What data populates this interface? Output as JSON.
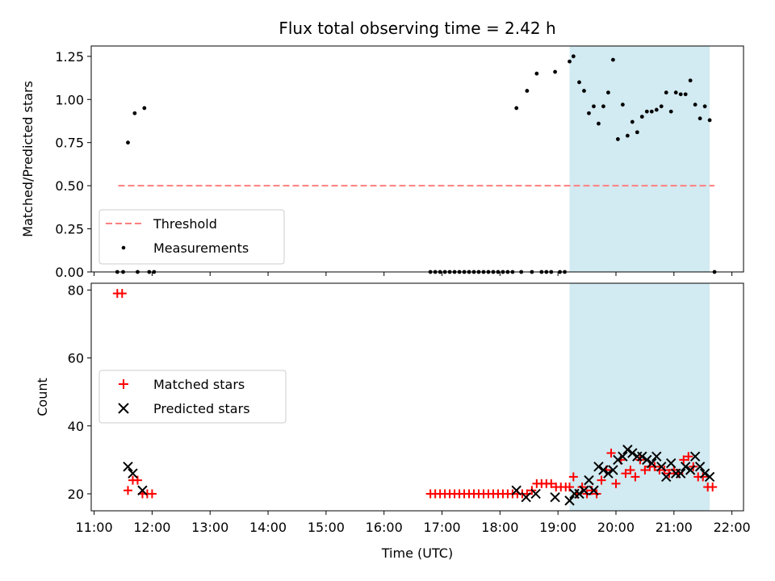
{
  "chart_data": [
    {
      "type": "scatter",
      "title": "Flux total observing time = 2.42 h",
      "xlabel": "",
      "ylabel": "Matched/Predicted stars",
      "xlim": [
        "10:57",
        "22:12"
      ],
      "ylim": [
        0,
        1.31
      ],
      "yticks": [
        "0.00",
        "0.25",
        "0.50",
        "0.75",
        "1.00",
        "1.25"
      ],
      "grid": false,
      "legend_position": "lower-left",
      "shaded_interval": {
        "start": "19:12",
        "end": "21:37",
        "color": "#add8e6"
      },
      "series": [
        {
          "name": "Threshold",
          "kind": "dashed-line",
          "color": "#ff7f7f",
          "x": [
            "11:25",
            "21:42"
          ],
          "y": [
            0.5,
            0.5
          ]
        },
        {
          "name": "Measurements",
          "kind": "points",
          "color": "#000000",
          "points": [
            [
              "11:24",
              0
            ],
            [
              "11:30",
              0
            ],
            [
              "11:35",
              0.75
            ],
            [
              "11:42",
              0.92
            ],
            [
              "11:45",
              0
            ],
            [
              "11:52",
              0.95
            ],
            [
              "11:57",
              0
            ],
            [
              "12:02",
              0
            ],
            [
              "16:48",
              0
            ],
            [
              "16:53",
              0
            ],
            [
              "16:58",
              0
            ],
            [
              "17:03",
              0
            ],
            [
              "17:08",
              0
            ],
            [
              "17:13",
              0
            ],
            [
              "17:18",
              0
            ],
            [
              "17:23",
              0
            ],
            [
              "17:28",
              0
            ],
            [
              "17:33",
              0
            ],
            [
              "17:38",
              0
            ],
            [
              "17:43",
              0
            ],
            [
              "17:48",
              0
            ],
            [
              "17:53",
              0
            ],
            [
              "17:58",
              0
            ],
            [
              "18:03",
              0
            ],
            [
              "18:08",
              0
            ],
            [
              "18:13",
              0
            ],
            [
              "18:17",
              0.95
            ],
            [
              "18:22",
              0
            ],
            [
              "18:28",
              1.05
            ],
            [
              "18:33",
              0
            ],
            [
              "18:38",
              1.15
            ],
            [
              "18:43",
              0
            ],
            [
              "18:48",
              0
            ],
            [
              "18:53",
              0
            ],
            [
              "18:57",
              1.16
            ],
            [
              "19:02",
              0
            ],
            [
              "19:07",
              0
            ],
            [
              "19:12",
              1.22
            ],
            [
              "19:16",
              1.25
            ],
            [
              "19:22",
              1.1
            ],
            [
              "19:27",
              1.05
            ],
            [
              "19:32",
              0.92
            ],
            [
              "19:37",
              0.96
            ],
            [
              "19:42",
              0.86
            ],
            [
              "19:47",
              0.96
            ],
            [
              "19:52",
              1.04
            ],
            [
              "19:57",
              1.23
            ],
            [
              "20:02",
              0.77
            ],
            [
              "20:07",
              0.97
            ],
            [
              "20:12",
              0.79
            ],
            [
              "20:17",
              0.87
            ],
            [
              "20:22",
              0.81
            ],
            [
              "20:27",
              0.9
            ],
            [
              "20:32",
              0.93
            ],
            [
              "20:37",
              0.93
            ],
            [
              "20:42",
              0.94
            ],
            [
              "20:47",
              0.96
            ],
            [
              "20:52",
              1.04
            ],
            [
              "20:57",
              0.93
            ],
            [
              "21:02",
              1.04
            ],
            [
              "21:07",
              1.03
            ],
            [
              "21:12",
              1.03
            ],
            [
              "21:17",
              1.11
            ],
            [
              "21:22",
              0.97
            ],
            [
              "21:27",
              0.89
            ],
            [
              "21:32",
              0.96
            ],
            [
              "21:37",
              0.88
            ],
            [
              "21:42",
              0
            ]
          ]
        }
      ]
    },
    {
      "type": "scatter",
      "title": "",
      "xlabel": "Time (UTC)",
      "ylabel": "Count",
      "xlim": [
        "10:57",
        "22:12"
      ],
      "ylim": [
        15,
        82
      ],
      "yticks": [
        "20",
        "40",
        "60",
        "80"
      ],
      "xticks": [
        "11:00",
        "12:00",
        "13:00",
        "14:00",
        "15:00",
        "16:00",
        "17:00",
        "18:00",
        "19:00",
        "20:00",
        "21:00",
        "22:00"
      ],
      "grid": false,
      "legend_position": "center-left",
      "shaded_interval": {
        "start": "19:12",
        "end": "21:37",
        "color": "#add8e6"
      },
      "series": [
        {
          "name": "Matched stars",
          "marker": "plus",
          "color": "#ff0000",
          "points": [
            [
              "11:24",
              79
            ],
            [
              "11:29",
              79
            ],
            [
              "11:35",
              21
            ],
            [
              "11:40",
              24
            ],
            [
              "11:45",
              24
            ],
            [
              "11:50",
              20
            ],
            [
              "11:55",
              20
            ],
            [
              "12:00",
              20
            ],
            [
              "16:48",
              20
            ],
            [
              "16:53",
              20
            ],
            [
              "16:58",
              20
            ],
            [
              "17:03",
              20
            ],
            [
              "17:08",
              20
            ],
            [
              "17:13",
              20
            ],
            [
              "17:18",
              20
            ],
            [
              "17:23",
              20
            ],
            [
              "17:28",
              20
            ],
            [
              "17:33",
              20
            ],
            [
              "17:38",
              20
            ],
            [
              "17:43",
              20
            ],
            [
              "17:48",
              20
            ],
            [
              "17:53",
              20
            ],
            [
              "17:58",
              20
            ],
            [
              "18:03",
              20
            ],
            [
              "18:08",
              20
            ],
            [
              "18:13",
              20
            ],
            [
              "18:18",
              20
            ],
            [
              "18:23",
              20
            ],
            [
              "18:28",
              20
            ],
            [
              "18:33",
              21
            ],
            [
              "18:38",
              23
            ],
            [
              "18:43",
              23
            ],
            [
              "18:48",
              23
            ],
            [
              "18:53",
              23
            ],
            [
              "18:58",
              22
            ],
            [
              "19:03",
              22
            ],
            [
              "19:08",
              22
            ],
            [
              "19:12",
              22
            ],
            [
              "19:16",
              25
            ],
            [
              "19:20",
              20
            ],
            [
              "19:25",
              22
            ],
            [
              "19:30",
              20
            ],
            [
              "19:35",
              21
            ],
            [
              "19:40",
              20
            ],
            [
              "19:45",
              24
            ],
            [
              "19:50",
              27
            ],
            [
              "19:55",
              32
            ],
            [
              "20:00",
              23
            ],
            [
              "20:05",
              30
            ],
            [
              "20:10",
              26
            ],
            [
              "20:15",
              27
            ],
            [
              "20:20",
              25
            ],
            [
              "20:25",
              30
            ],
            [
              "20:30",
              27
            ],
            [
              "20:35",
              28
            ],
            [
              "20:40",
              28
            ],
            [
              "20:45",
              27
            ],
            [
              "20:50",
              27
            ],
            [
              "20:55",
              26
            ],
            [
              "21:00",
              27
            ],
            [
              "21:05",
              26
            ],
            [
              "21:10",
              30
            ],
            [
              "21:15",
              31
            ],
            [
              "21:20",
              28
            ],
            [
              "21:25",
              25
            ],
            [
              "21:30",
              25
            ],
            [
              "21:35",
              22
            ],
            [
              "21:40",
              22
            ]
          ]
        },
        {
          "name": "Predicted stars",
          "marker": "x",
          "color": "#000000",
          "points": [
            [
              "11:35",
              28
            ],
            [
              "11:40",
              26
            ],
            [
              "11:50",
              21
            ],
            [
              "18:17",
              21
            ],
            [
              "18:27",
              19
            ],
            [
              "18:37",
              20
            ],
            [
              "18:57",
              19
            ],
            [
              "19:12",
              18
            ],
            [
              "19:17",
              20
            ],
            [
              "19:22",
              20
            ],
            [
              "19:27",
              21
            ],
            [
              "19:32",
              24
            ],
            [
              "19:37",
              21
            ],
            [
              "19:42",
              28
            ],
            [
              "19:47",
              27
            ],
            [
              "19:52",
              26
            ],
            [
              "19:57",
              27
            ],
            [
              "20:02",
              30
            ],
            [
              "20:07",
              31
            ],
            [
              "20:12",
              33
            ],
            [
              "20:17",
              32
            ],
            [
              "20:22",
              31
            ],
            [
              "20:27",
              31
            ],
            [
              "20:32",
              30
            ],
            [
              "20:37",
              29
            ],
            [
              "20:42",
              31
            ],
            [
              "20:47",
              28
            ],
            [
              "20:52",
              25
            ],
            [
              "20:57",
              29
            ],
            [
              "21:02",
              26
            ],
            [
              "21:07",
              26
            ],
            [
              "21:12",
              28
            ],
            [
              "21:17",
              27
            ],
            [
              "21:22",
              31
            ],
            [
              "21:27",
              28
            ],
            [
              "21:32",
              26
            ],
            [
              "21:37",
              25
            ]
          ]
        }
      ]
    }
  ]
}
